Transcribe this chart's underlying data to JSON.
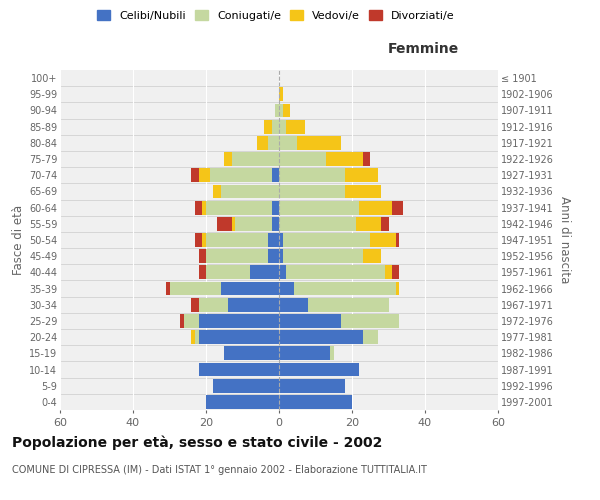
{
  "age_groups": [
    "0-4",
    "5-9",
    "10-14",
    "15-19",
    "20-24",
    "25-29",
    "30-34",
    "35-39",
    "40-44",
    "45-49",
    "50-54",
    "55-59",
    "60-64",
    "65-69",
    "70-74",
    "75-79",
    "80-84",
    "85-89",
    "90-94",
    "95-99",
    "100+"
  ],
  "birth_years": [
    "1997-2001",
    "1992-1996",
    "1987-1991",
    "1982-1986",
    "1977-1981",
    "1972-1976",
    "1967-1971",
    "1962-1966",
    "1957-1961",
    "1952-1956",
    "1947-1951",
    "1942-1946",
    "1937-1941",
    "1932-1936",
    "1927-1931",
    "1922-1926",
    "1917-1921",
    "1912-1916",
    "1907-1911",
    "1902-1906",
    "≤ 1901"
  ],
  "male": {
    "celibi": [
      20,
      18,
      22,
      15,
      22,
      22,
      14,
      16,
      8,
      3,
      3,
      2,
      2,
      0,
      2,
      0,
      0,
      0,
      0,
      0,
      0
    ],
    "coniugati": [
      0,
      0,
      0,
      0,
      1,
      4,
      8,
      14,
      12,
      17,
      17,
      10,
      18,
      16,
      17,
      13,
      3,
      2,
      1,
      0,
      0
    ],
    "vedovi": [
      0,
      0,
      0,
      0,
      1,
      0,
      0,
      0,
      0,
      0,
      1,
      1,
      1,
      2,
      3,
      2,
      3,
      2,
      0,
      0,
      0
    ],
    "divorziati": [
      0,
      0,
      0,
      0,
      0,
      1,
      2,
      1,
      2,
      2,
      2,
      4,
      2,
      0,
      2,
      0,
      0,
      0,
      0,
      0,
      0
    ]
  },
  "female": {
    "nubili": [
      20,
      18,
      22,
      14,
      23,
      17,
      8,
      4,
      2,
      1,
      1,
      0,
      0,
      0,
      0,
      0,
      0,
      0,
      0,
      0,
      0
    ],
    "coniugate": [
      0,
      0,
      0,
      1,
      4,
      16,
      22,
      28,
      27,
      22,
      24,
      21,
      22,
      18,
      18,
      13,
      5,
      2,
      1,
      0,
      0
    ],
    "vedove": [
      0,
      0,
      0,
      0,
      0,
      0,
      0,
      1,
      2,
      5,
      7,
      7,
      9,
      10,
      9,
      10,
      12,
      5,
      2,
      1,
      0
    ],
    "divorziate": [
      0,
      0,
      0,
      0,
      0,
      0,
      0,
      0,
      2,
      0,
      1,
      2,
      3,
      0,
      0,
      2,
      0,
      0,
      0,
      0,
      0
    ]
  },
  "colors": {
    "celibi_nubili": "#4472C4",
    "coniugati_e": "#c5d8a0",
    "vedovi_e": "#f5c518",
    "divorziati_e": "#c0392b"
  },
  "title": "Popolazione per età, sesso e stato civile - 2002",
  "subtitle": "COMUNE DI CIPRESSA (IM) - Dati ISTAT 1° gennaio 2002 - Elaborazione TUTTITALIA.IT",
  "xlabel_right": "Femmine",
  "ylabel_left": "Fasce di età",
  "ylabel_right": "Anni di nascita",
  "xlim": 60,
  "legend_labels": [
    "Celibi/Nubili",
    "Coniugati/e",
    "Vedovi/e",
    "Divorziati/e"
  ],
  "bg_color": "#ffffff",
  "plot_bg": "#f0f0f0",
  "grid_color": "#ffffff"
}
